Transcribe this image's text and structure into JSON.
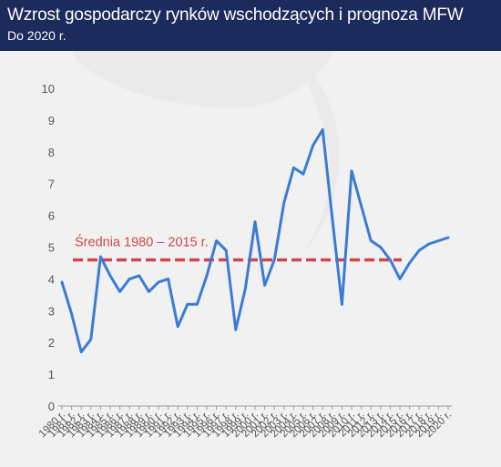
{
  "header": {
    "title": "Wzrost gospodarczy rynków wschodzących i prognoza MFW",
    "subtitle": "Do 2020 r."
  },
  "colors": {
    "header_bg": "#1c2a5c",
    "chart_bg": "#f1f1f1",
    "line": "#3a7bd5",
    "average": "#d0454c"
  },
  "chart_data": {
    "type": "line",
    "title": "Wzrost gospodarczy rynków wschodzących i prognoza MFW",
    "subtitle": "Do 2020 r.",
    "xlabel": "",
    "ylabel": "",
    "ylim": [
      0,
      10
    ],
    "yticks": [
      "0",
      "1",
      "2",
      "3",
      "4",
      "5",
      "6",
      "7",
      "8",
      "9",
      "10"
    ],
    "grid": false,
    "categories": [
      "1980 r.",
      "1981 r.",
      "1982 r.",
      "1983 r.",
      "1984 r.",
      "1985 r.",
      "1986 r.",
      "1987 r.",
      "1988 r.",
      "1989 r.",
      "1990 r.",
      "1991 r.",
      "1992 r.",
      "1993 r.",
      "1994 r.",
      "1995 r.",
      "1996 r.",
      "1997 r.",
      "1998 r.",
      "1999 r.",
      "2000 r.",
      "2001 r.",
      "2002 r.",
      "2003 r.",
      "2004 r.",
      "2005 r.",
      "2006 r.",
      "2007 r.",
      "2008 r.",
      "2009 r.",
      "2010 r.",
      "2011 r.",
      "2012 r.",
      "2013 r.",
      "2014 r.",
      "2015 r.",
      "2016 r.",
      "2017 r.",
      "2018 r.",
      "2019 r.",
      "2020 r."
    ],
    "series": [
      {
        "values": [
          3.9,
          2.9,
          1.7,
          2.1,
          4.7,
          4.1,
          3.6,
          4.0,
          4.1,
          3.6,
          3.9,
          4.0,
          2.5,
          3.2,
          3.2,
          4.1,
          5.2,
          4.9,
          2.4,
          3.7,
          5.8,
          3.8,
          4.6,
          6.4,
          7.5,
          7.3,
          8.2,
          8.7,
          5.9,
          3.2,
          7.4,
          6.3,
          5.2,
          5.0,
          4.6,
          4.0,
          4.5,
          4.9,
          5.1,
          5.2,
          5.3
        ]
      }
    ],
    "average": {
      "label": "Średnia 1980 – 2015 r.",
      "value": 4.6,
      "from": "1980 r.",
      "to": "2015 r."
    }
  }
}
